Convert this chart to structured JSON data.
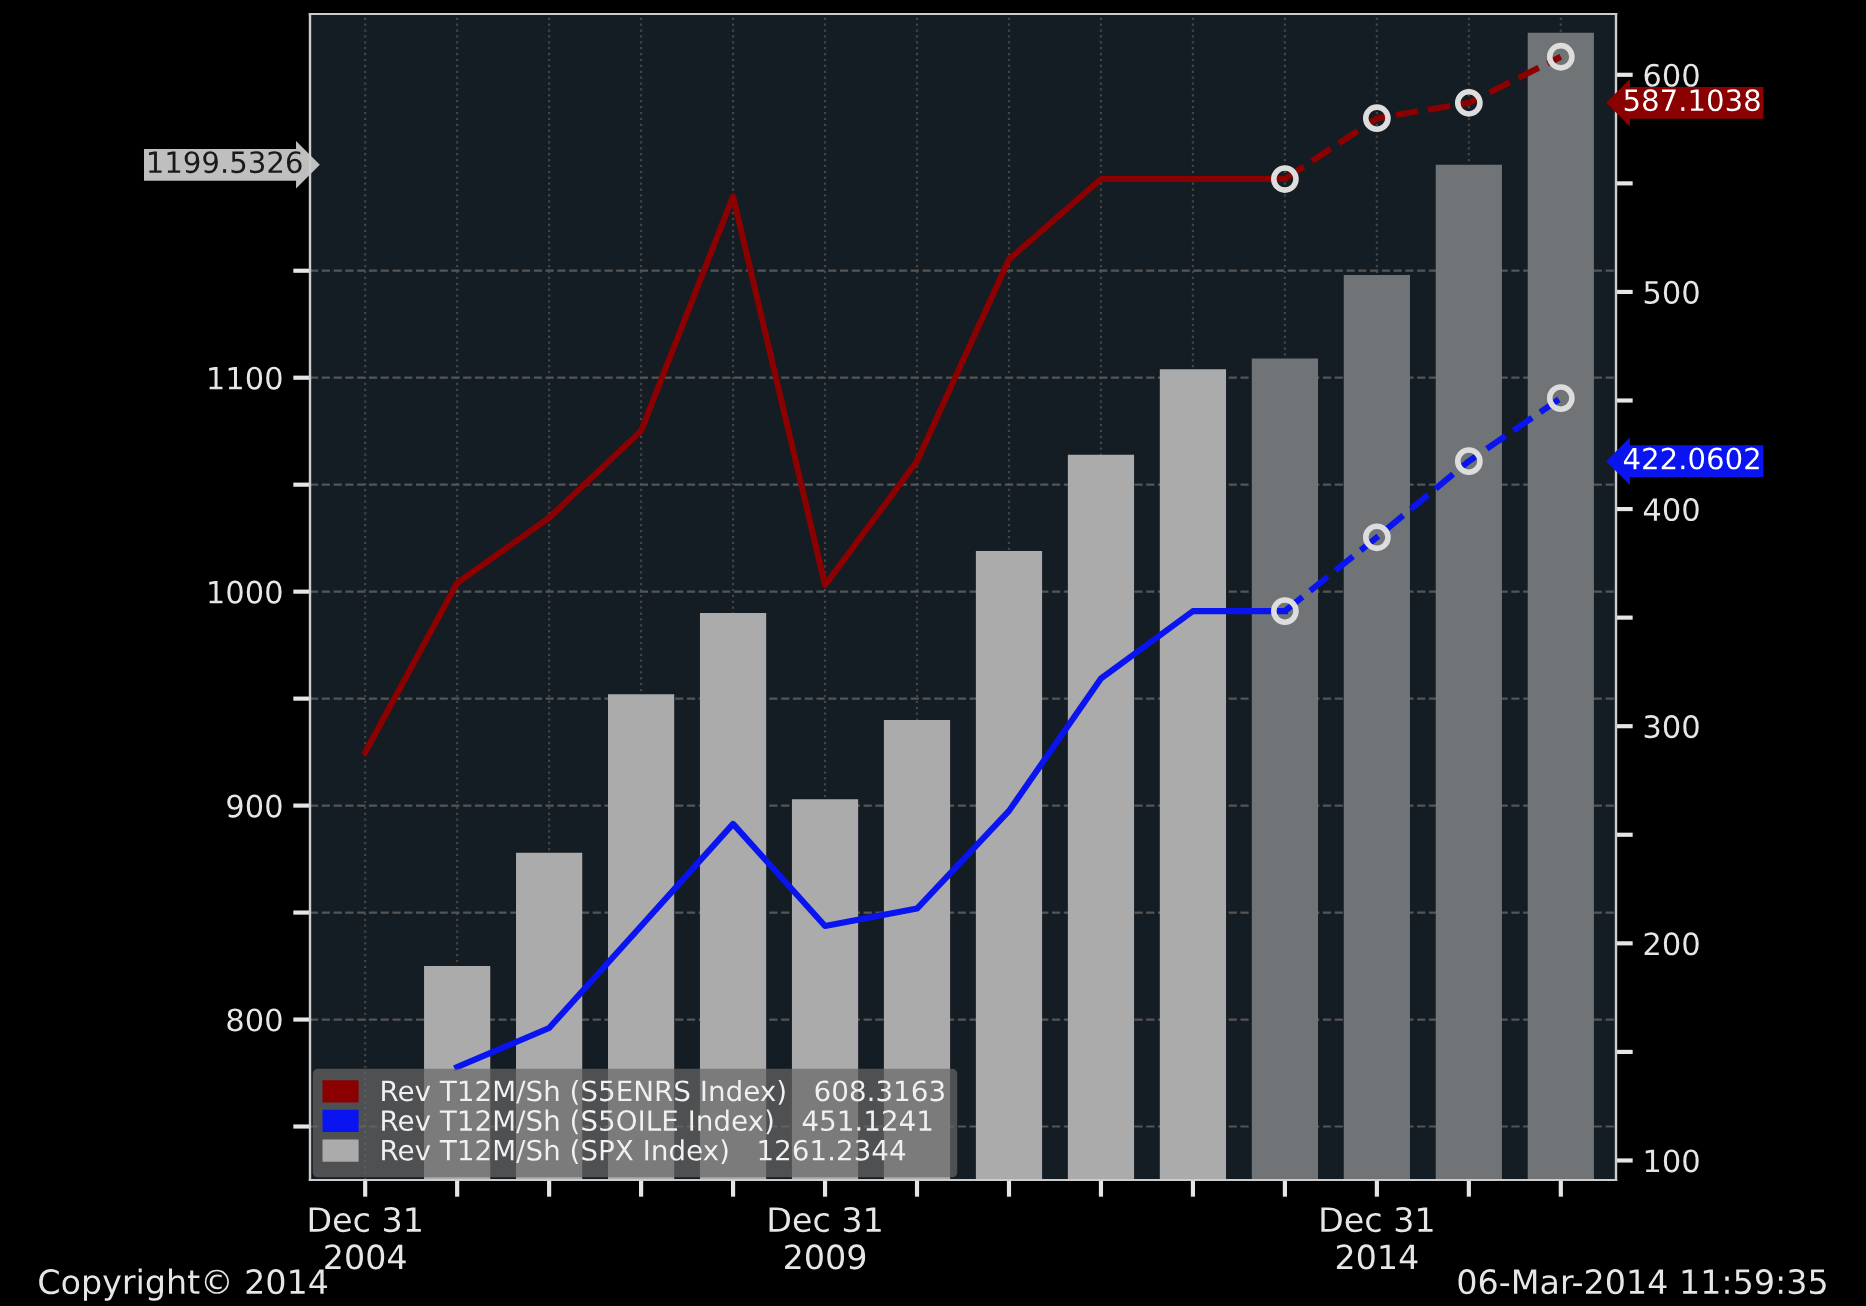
{
  "chart_data": {
    "type": "bar",
    "categories": [
      "Dec 31\n2004",
      null,
      null,
      null,
      null,
      "Dec 31\n2009",
      null,
      null,
      null,
      null,
      null,
      "Dec 31\n2014",
      null,
      null
    ],
    "series": [
      {
        "name": "Rev T12M/Sh (SPX Index)   1261.2344",
        "axis": "y",
        "color": "#ababab",
        "colors": [
          "#ababab",
          "#ababab",
          "#ababab",
          "#ababab",
          "#ababab",
          "#ababab",
          "#ababab",
          "#ababab",
          "#ababab",
          "#ababab",
          "#707476",
          "#707476",
          "#707476",
          "#707476"
        ],
        "values": [
          null,
          825,
          878,
          952,
          990,
          903,
          940,
          1019,
          1064,
          1104,
          1109,
          1148,
          1199.5326,
          1261.2344
        ]
      },
      {
        "name": "Rev T12M/Sh (S5ENRS Index)   608.3163",
        "type": "line",
        "axis": "y2",
        "color": "#8b0000",
        "line_style": "solid",
        "values": [
          288,
          366,
          396,
          436,
          544,
          365,
          422,
          515,
          552,
          552,
          552,
          null,
          null,
          null
        ]
      },
      {
        "type": "line",
        "axis": "y2",
        "color": "#8b0000",
        "line_style": "dashed",
        "marker": "circle",
        "values": [
          null,
          null,
          null,
          null,
          null,
          null,
          null,
          null,
          null,
          null,
          552,
          580,
          587.1038,
          608.3163
        ]
      },
      {
        "name": "Rev T12M/Sh (S5OILE Index)   451.1241",
        "type": "line",
        "axis": "y2",
        "color": "#0a14f0",
        "line_style": "solid",
        "values": [
          null,
          143,
          161,
          208,
          255,
          208,
          216,
          261,
          322,
          353,
          353,
          null,
          null,
          null
        ]
      },
      {
        "type": "line",
        "axis": "y2",
        "color": "#0a14f0",
        "line_style": "dashed",
        "marker": "circle",
        "values": [
          null,
          null,
          null,
          null,
          null,
          null,
          null,
          null,
          null,
          null,
          353,
          387,
          422.0602,
          451.1241
        ]
      }
    ],
    "ylim": [
      725,
      1270
    ],
    "yticks": [
      {
        "value": 750,
        "label": null
      },
      800,
      {
        "value": 850,
        "label": null
      },
      900,
      {
        "value": 950,
        "label": null
      },
      1000,
      {
        "value": 1050,
        "label": null
      },
      1100,
      {
        "value": 1150,
        "label": null
      }
    ],
    "y2lim": [
      91,
      628
    ],
    "y2ticks": [
      100,
      {
        "value": 150,
        "label": null
      },
      200,
      {
        "value": 250,
        "label": null
      },
      300,
      {
        "value": 350,
        "label": null
      },
      400,
      {
        "value": 450,
        "label": null
      },
      500,
      {
        "value": 550,
        "label": null
      },
      600
    ],
    "grid": true,
    "legend": "bottom left",
    "annotations": [
      "Copyright© 2014",
      "06-Mar-2014 11:59:35",
      "1199.5326",
      "587.1038",
      "422.0602"
    ]
  }
}
